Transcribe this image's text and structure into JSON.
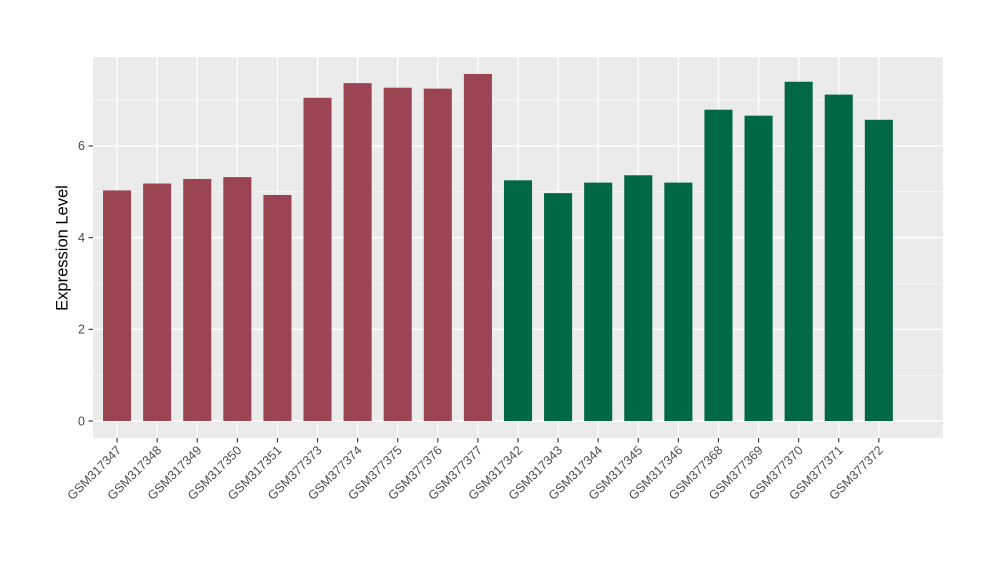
{
  "chart_data": {
    "type": "bar",
    "title": "",
    "xlabel": "",
    "ylabel": "Expression Level",
    "yticks": [
      0,
      2,
      4,
      6
    ],
    "minor_gridlines": [
      1,
      3,
      5,
      7
    ],
    "ylim": [
      0,
      7.94
    ],
    "grid": "on",
    "legend": "none",
    "plot_background_color": "#EBEBEB",
    "gridline_color": "#FFFFFF",
    "axis_text_color": "#4D4D4D",
    "tick_mark_color": "#333333",
    "bar_colors": {
      "maroon": "#9B4452",
      "green": "#006747"
    },
    "bars": [
      {
        "label": "GSM317347",
        "value": 5.03,
        "color": "maroon"
      },
      {
        "label": "GSM317348",
        "value": 5.18,
        "color": "maroon"
      },
      {
        "label": "GSM317349",
        "value": 5.28,
        "color": "maroon"
      },
      {
        "label": "GSM317350",
        "value": 5.32,
        "color": "maroon"
      },
      {
        "label": "GSM317351",
        "value": 4.93,
        "color": "maroon"
      },
      {
        "label": "GSM377373",
        "value": 7.05,
        "color": "maroon"
      },
      {
        "label": "GSM377374",
        "value": 7.37,
        "color": "maroon"
      },
      {
        "label": "GSM377375",
        "value": 7.27,
        "color": "maroon"
      },
      {
        "label": "GSM377376",
        "value": 7.25,
        "color": "maroon"
      },
      {
        "label": "GSM377377",
        "value": 7.57,
        "color": "maroon"
      },
      {
        "label": "GSM317342",
        "value": 5.25,
        "color": "green"
      },
      {
        "label": "GSM317343",
        "value": 4.97,
        "color": "green"
      },
      {
        "label": "GSM317344",
        "value": 5.2,
        "color": "green"
      },
      {
        "label": "GSM317345",
        "value": 5.36,
        "color": "green"
      },
      {
        "label": "GSM317346",
        "value": 5.2,
        "color": "green"
      },
      {
        "label": "GSM377368",
        "value": 6.79,
        "color": "green"
      },
      {
        "label": "GSM377369",
        "value": 6.66,
        "color": "green"
      },
      {
        "label": "GSM377370",
        "value": 7.4,
        "color": "green"
      },
      {
        "label": "GSM377371",
        "value": 7.12,
        "color": "green"
      },
      {
        "label": "GSM377372",
        "value": 6.57,
        "color": "green"
      }
    ]
  }
}
